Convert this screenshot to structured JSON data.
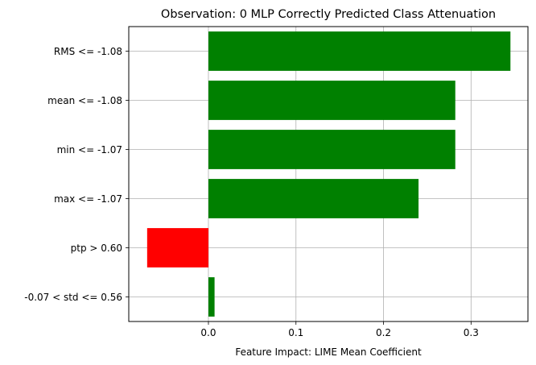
{
  "chart_data": {
    "type": "bar",
    "orientation": "horizontal",
    "title": "Observation: 0 MLP Correctly Predicted Class Attenuation",
    "xlabel": "Feature Impact: LIME Mean Coefficient",
    "ylabel": "",
    "categories": [
      "RMS <= -1.08",
      "mean <= -1.08",
      "min <= -1.07",
      "max <= -1.07",
      "ptp > 0.60",
      "-0.07 < std <= 0.56"
    ],
    "values": [
      0.345,
      0.282,
      0.282,
      0.24,
      -0.07,
      0.007
    ],
    "xlim": [
      -0.091,
      0.365
    ],
    "xticks": [
      0.0,
      0.1,
      0.2,
      0.3
    ],
    "xtick_labels": [
      "0.0",
      "0.1",
      "0.2",
      "0.3"
    ],
    "grid": true,
    "colors": {
      "positive": "#008000",
      "negative": "#ff0000",
      "grid": "#b0b0b0"
    }
  }
}
